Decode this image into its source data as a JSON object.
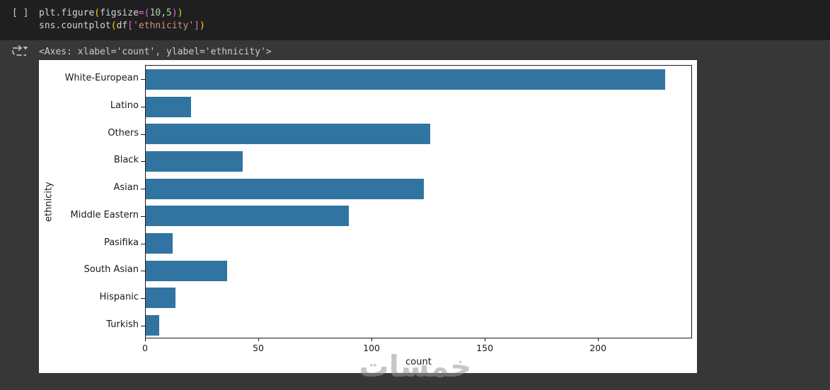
{
  "notebook": {
    "cell": {
      "gutter_label": "[ ]",
      "code_lines": [
        {
          "tokens": [
            {
              "t": "plt.figure",
              "c": "fg"
            },
            {
              "t": "(",
              "c": "b1"
            },
            {
              "t": "figsize",
              "c": "fg"
            },
            {
              "t": "=",
              "c": "b2"
            },
            {
              "t": "(",
              "c": "b2"
            },
            {
              "t": "10",
              "c": "num"
            },
            {
              "t": ",",
              "c": "fg"
            },
            {
              "t": "5",
              "c": "num"
            },
            {
              "t": ")",
              "c": "b2"
            },
            {
              "t": ")",
              "c": "b1"
            }
          ]
        },
        {
          "tokens": [
            {
              "t": "sns.countplot",
              "c": "fg"
            },
            {
              "t": "(",
              "c": "b1"
            },
            {
              "t": "df",
              "c": "fg"
            },
            {
              "t": "[",
              "c": "b2"
            },
            {
              "t": "'ethnicity'",
              "c": "str"
            },
            {
              "t": "]",
              "c": "b2"
            },
            {
              "t": ")",
              "c": "b1"
            }
          ]
        }
      ]
    },
    "output_text": "<Axes: xlabel='count', ylabel='ethnicity'>"
  },
  "chart_data": {
    "type": "bar",
    "orientation": "horizontal",
    "title": "",
    "categories": [
      "White-European",
      "Latino",
      "Others",
      "Black",
      "Asian",
      "Middle Eastern",
      "Pasifika",
      "South Asian",
      "Hispanic",
      "Turkish"
    ],
    "values": [
      230,
      20,
      126,
      43,
      123,
      90,
      12,
      36,
      13,
      6
    ],
    "xlabel": "count",
    "ylabel": "ethnicity",
    "xticks": [
      0,
      50,
      100,
      150,
      200
    ],
    "xlim": [
      0,
      241.5
    ],
    "grid": false,
    "legend": false,
    "bar_color": "#3274a1"
  },
  "watermark": "خمسات",
  "colors": {
    "page_bg": "#373737",
    "cell_bg": "#1f1f1f",
    "figure_bg": "#ffffff",
    "bar": "#3274a1",
    "code_default": "#d4d4d4",
    "bracket_outer": "#ffd700",
    "bracket_inner": "#d670d6",
    "number": "#b5cea8",
    "string": "#ce9178"
  }
}
